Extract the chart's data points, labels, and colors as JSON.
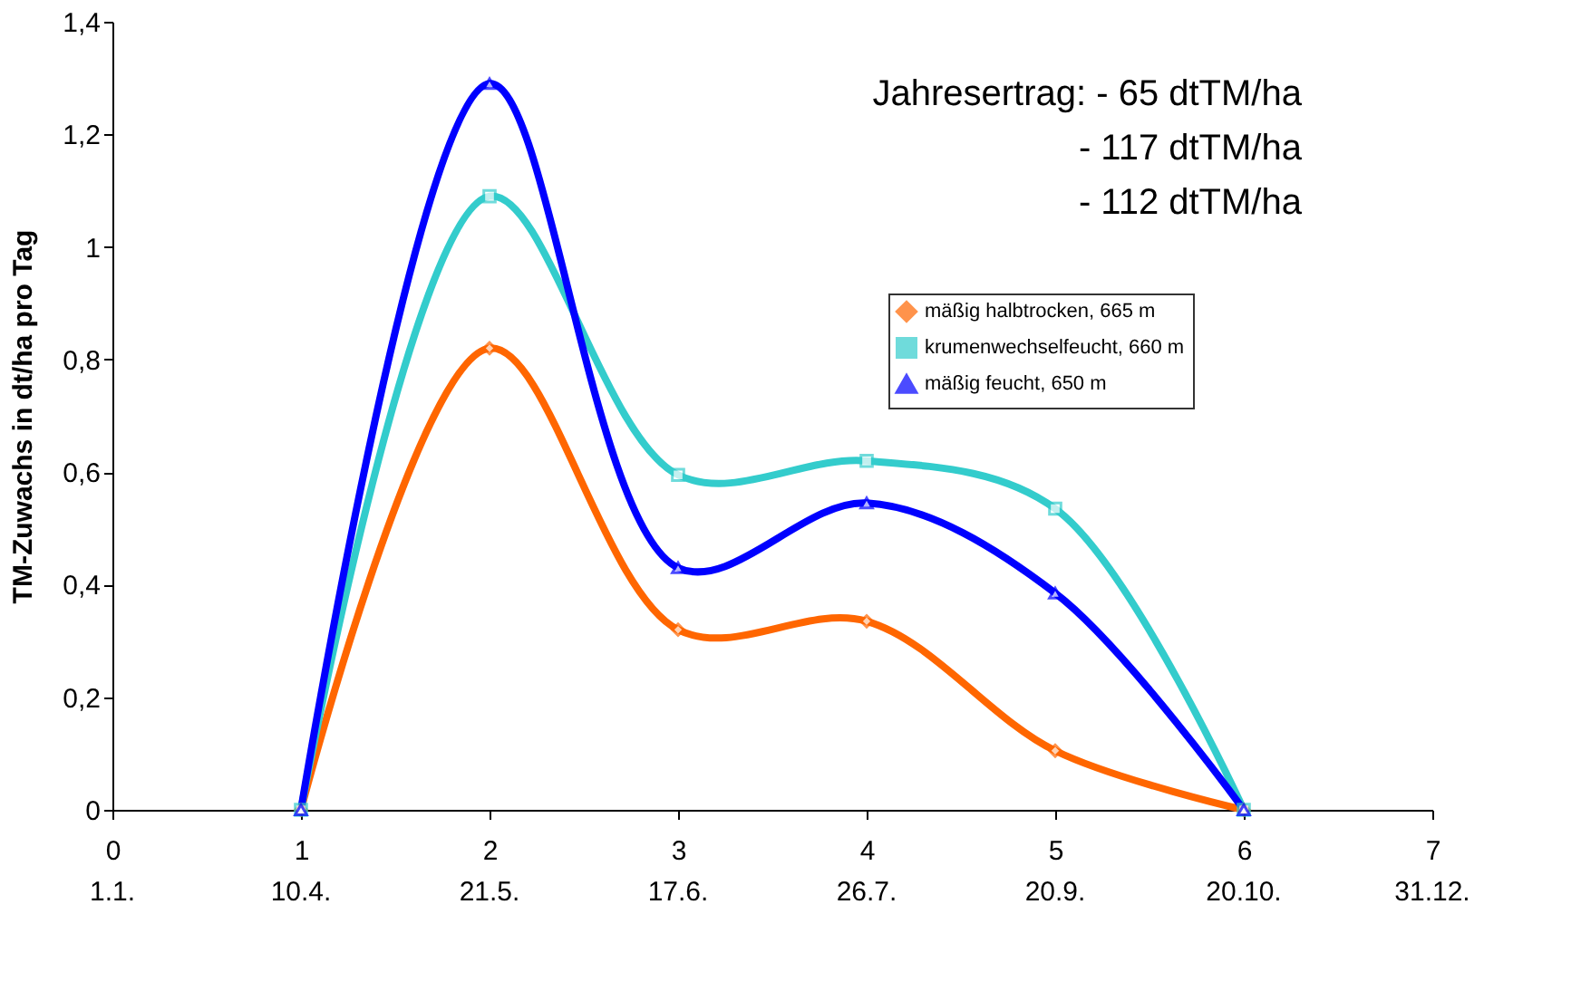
{
  "chart_data": {
    "type": "line",
    "ylabel": "TM-Zuwachs in dt/ha pro Tag",
    "x": [
      1,
      2,
      3,
      4,
      5,
      6
    ],
    "xlim": [
      0,
      7
    ],
    "xticks": [
      0,
      1,
      2,
      3,
      4,
      5,
      6,
      7
    ],
    "ylim": [
      0,
      1.4
    ],
    "yticks": [
      0,
      {
        "value": 0.2,
        "label": "0,2"
      },
      {
        "value": 0.4,
        "label": "0,4"
      },
      {
        "value": 0.6,
        "label": "0,6"
      },
      {
        "value": 0.8,
        "label": "0,8"
      },
      1,
      {
        "value": 1.2,
        "label": "1,2"
      },
      {
        "value": 1.4,
        "label": "1,4"
      }
    ],
    "series": [
      {
        "name": "mäßig  halbtrocken, 665 m",
        "color": "#ff6600",
        "marker": "diamond",
        "values": [
          0,
          0.82,
          0.32,
          0.335,
          0.105,
          0
        ]
      },
      {
        "name": "krumenwechselfeucht, 660 m",
        "color": "#33cccc",
        "marker": "square",
        "values": [
          0,
          1.09,
          0.595,
          0.62,
          0.535,
          0
        ]
      },
      {
        "name": "mäßig feucht, 650 m",
        "color": "#0000ff",
        "marker": "triangle",
        "values": [
          0,
          1.29,
          0.43,
          0.545,
          0.385,
          0
        ]
      }
    ],
    "annotations": [
      "Jahresertrag: - 65 dtTM/ha",
      "- 117 dtTM/ha",
      "- 112 dtTM/ha",
      "1.1.",
      "10.4.",
      "21.5.",
      "17.6.",
      "26.7.",
      "20.9.",
      "20.10.",
      "31.12."
    ],
    "legend": "top right",
    "grid": false,
    "line_style": "solid"
  }
}
